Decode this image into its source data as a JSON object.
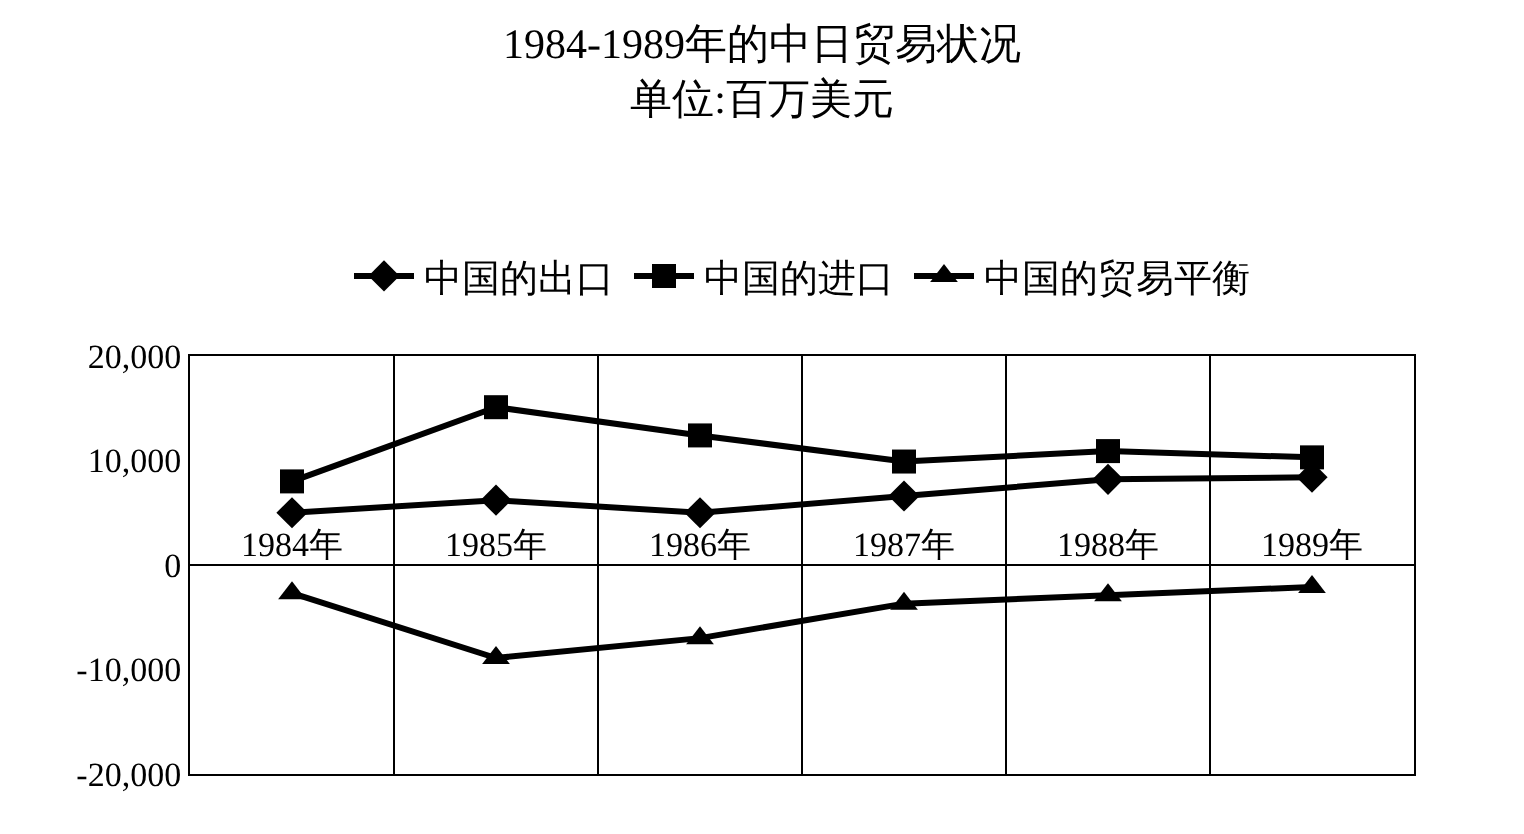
{
  "chart_data": {
    "type": "line",
    "title": "1984-1989年的中日贸易状况",
    "subtitle": "单位:百万美元",
    "categories": [
      "1984年",
      "1985年",
      "1986年",
      "1987年",
      "1988年",
      "1989年"
    ],
    "series": [
      {
        "name": "中国的出口",
        "color": "#000000",
        "marker": "diamond",
        "values": [
          5000,
          6200,
          5000,
          6600,
          8200,
          8400
        ]
      },
      {
        "name": "中国的进口",
        "color": "#000000",
        "marker": "square",
        "values": [
          8000,
          15100,
          12400,
          9900,
          10900,
          10300
        ]
      },
      {
        "name": "中国的贸易平衡",
        "color": "#000000",
        "marker": "triangle",
        "values": [
          -2700,
          -8900,
          -7000,
          -3700,
          -2900,
          -2100
        ]
      }
    ],
    "ylim": [
      -20000,
      20000
    ],
    "yticks": [
      {
        "value": -20000,
        "label": "-20,000"
      },
      {
        "value": -10000,
        "label": "-10,000"
      },
      {
        "value": 0,
        "label": "0"
      },
      {
        "value": 10000,
        "label": "10,000"
      },
      {
        "value": 20000,
        "label": "20,000"
      }
    ],
    "grid": "x",
    "legend": "top",
    "line_style": "solid"
  }
}
